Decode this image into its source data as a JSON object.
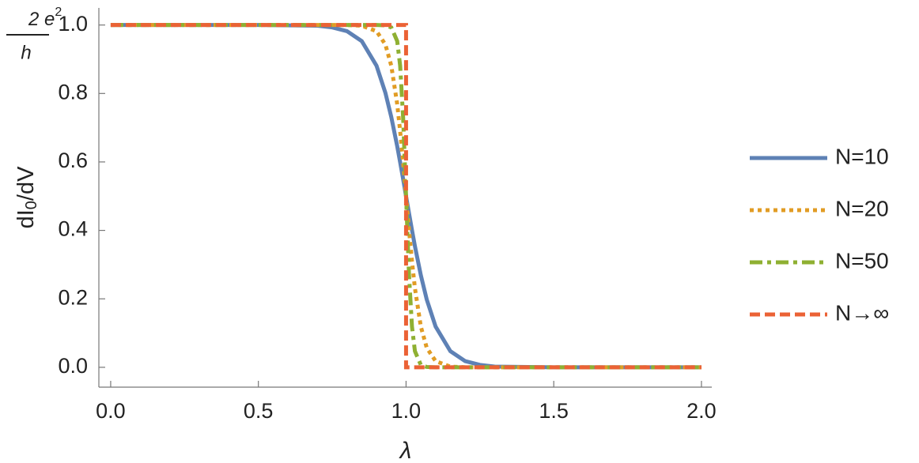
{
  "chart_data": {
    "type": "line",
    "unit_label": {
      "numerator": "2 e",
      "numerator_sup": "2",
      "denominator": "h"
    },
    "ylabel": {
      "main": "dI",
      "sub": "0",
      "rest": "/dV"
    },
    "xlabel": "λ",
    "xlim": [
      -0.04,
      2.035
    ],
    "ylim": [
      -0.058,
      1.05
    ],
    "xticks": [
      {
        "value": 0,
        "label": "0.0"
      },
      {
        "value": 0.5,
        "label": "0.5"
      },
      {
        "value": 1,
        "label": "1.0"
      },
      {
        "value": 1.5,
        "label": "1.5"
      },
      {
        "value": 2,
        "label": "2.0"
      }
    ],
    "yticks": [
      {
        "value": 0,
        "label": "0.0"
      },
      {
        "value": 0.2,
        "label": "0.2"
      },
      {
        "value": 0.4,
        "label": "0.4"
      },
      {
        "value": 0.6,
        "label": "0.6"
      },
      {
        "value": 0.8,
        "label": "0.8"
      },
      {
        "value": 1,
        "label": "1.0"
      }
    ],
    "legend": "right",
    "series": [
      {
        "name": "N=10",
        "color": "#5e81b5",
        "dash": "solid",
        "x": [
          0,
          0.5,
          0.7,
          0.75,
          0.8,
          0.85,
          0.9,
          0.93,
          0.95,
          0.97,
          0.98,
          0.99,
          1.0,
          1.01,
          1.02,
          1.03,
          1.05,
          1.07,
          1.1,
          1.15,
          1.2,
          1.25,
          1.3,
          1.5,
          2.0
        ],
        "values": [
          1,
          1,
          0.998,
          0.993,
          0.982,
          0.953,
          0.881,
          0.802,
          0.731,
          0.646,
          0.599,
          0.55,
          0.5,
          0.45,
          0.401,
          0.354,
          0.269,
          0.198,
          0.119,
          0.047,
          0.018,
          0.007,
          0.002,
          0,
          0
        ]
      },
      {
        "name": "N=20",
        "color": "#e19c24",
        "dash": "dotted",
        "x": [
          0,
          0.5,
          0.8,
          0.85,
          0.9,
          0.93,
          0.95,
          0.97,
          0.98,
          0.99,
          1.0,
          1.01,
          1.02,
          1.03,
          1.05,
          1.07,
          1.1,
          1.15,
          1.2,
          2.0
        ],
        "values": [
          1,
          1,
          1,
          0.998,
          0.982,
          0.943,
          0.881,
          0.769,
          0.69,
          0.599,
          0.5,
          0.401,
          0.31,
          0.231,
          0.119,
          0.057,
          0.018,
          0.002,
          0,
          0
        ]
      },
      {
        "name": "N=50",
        "color": "#8fb032",
        "dash": "dashdot",
        "x": [
          0,
          0.5,
          0.9,
          0.93,
          0.95,
          0.97,
          0.98,
          0.99,
          1.0,
          1.01,
          1.02,
          1.03,
          1.05,
          1.07,
          1.1,
          2.0
        ],
        "values": [
          1,
          1,
          1,
          0.999,
          0.993,
          0.953,
          0.881,
          0.731,
          0.5,
          0.269,
          0.119,
          0.047,
          0.007,
          0.001,
          0,
          0
        ]
      },
      {
        "name": "N→∞",
        "color": "#eb6235",
        "dash": "dashed",
        "x": [
          0,
          1.0,
          1.0,
          2.0
        ],
        "values": [
          1,
          1,
          0,
          0
        ]
      }
    ]
  }
}
